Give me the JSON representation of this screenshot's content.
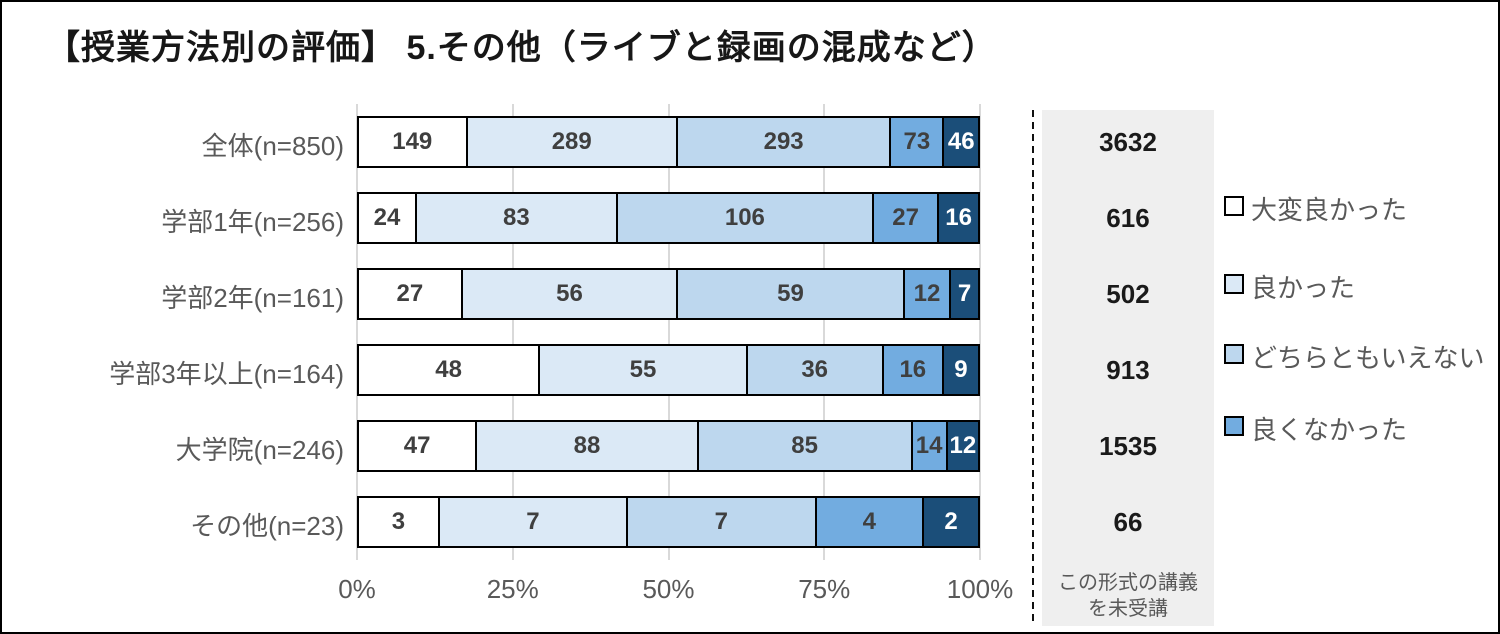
{
  "title": "【授業方法別の評価】 5.その他（ライブと録画の混成など）",
  "colors": {
    "frame_border": "#000000",
    "grid": "#d9d9d9",
    "panel_bg": "#efefef",
    "muted_text": "#595959",
    "bar_label_text": "#3f3f3f"
  },
  "chart_data": {
    "type": "bar",
    "stacked": true,
    "orientation": "horizontal",
    "title": "【授業方法別の評価】 5.その他（ライブと録画の混成など）",
    "x_axis": {
      "ticks": [
        "0%",
        "25%",
        "50%",
        "75%",
        "100%"
      ],
      "range": [
        0,
        100
      ],
      "grid": true
    },
    "categories": [
      "全体(n=850)",
      "学部1年(n=256)",
      "学部2年(n=161)",
      "学部3年以上(n=164)",
      "大学院(n=246)",
      "その他(n=23)"
    ],
    "series": [
      {
        "name": "大変良かった",
        "color": "#ffffff",
        "text_color": "#3f3f3f",
        "in_legend": true,
        "values": [
          149,
          24,
          27,
          48,
          47,
          3
        ]
      },
      {
        "name": "良かった",
        "color": "#dbe9f6",
        "text_color": "#3f3f3f",
        "in_legend": true,
        "values": [
          289,
          83,
          56,
          55,
          88,
          7
        ]
      },
      {
        "name": "どちらともいえない",
        "color": "#bdd7ee",
        "text_color": "#3f3f3f",
        "in_legend": true,
        "values": [
          293,
          106,
          59,
          36,
          85,
          7
        ]
      },
      {
        "name": "良くなかった",
        "color": "#72ace0",
        "text_color": "#3f3f3f",
        "in_legend": true,
        "values": [
          73,
          27,
          12,
          16,
          14,
          4
        ]
      },
      {
        "name": "",
        "color": "#1b4e79",
        "text_color": "#ffffff",
        "in_legend": false,
        "values": [
          46,
          16,
          7,
          9,
          12,
          2
        ]
      }
    ],
    "legend_position": "right"
  },
  "side_panel": {
    "values": [
      "3632",
      "616",
      "502",
      "913",
      "1535",
      "66"
    ],
    "footer_lines": [
      "この形式の講義",
      "を未受講"
    ]
  }
}
